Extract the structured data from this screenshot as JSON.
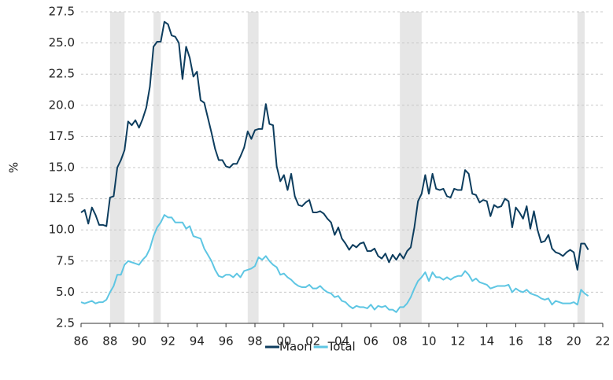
{
  "chart_data": {
    "type": "line",
    "y_label": "%",
    "x": [
      1986,
      1986.25,
      1986.5,
      1986.75,
      1987,
      1987.25,
      1987.5,
      1987.75,
      1988,
      1988.25,
      1988.5,
      1988.75,
      1989,
      1989.25,
      1989.5,
      1989.75,
      1990,
      1990.25,
      1990.5,
      1990.75,
      1991,
      1991.25,
      1991.5,
      1991.75,
      1992,
      1992.25,
      1992.5,
      1992.75,
      1993,
      1993.25,
      1993.5,
      1993.75,
      1994,
      1994.25,
      1994.5,
      1994.75,
      1995,
      1995.25,
      1995.5,
      1995.75,
      1996,
      1996.25,
      1996.5,
      1996.75,
      1997,
      1997.25,
      1997.5,
      1997.75,
      1998,
      1998.25,
      1998.5,
      1998.75,
      1999,
      1999.25,
      1999.5,
      1999.75,
      2000,
      2000.25,
      2000.5,
      2000.75,
      2001,
      2001.25,
      2001.5,
      2001.75,
      2002,
      2002.25,
      2002.5,
      2002.75,
      2003,
      2003.25,
      2003.5,
      2003.75,
      2004,
      2004.25,
      2004.5,
      2004.75,
      2005,
      2005.25,
      2005.5,
      2005.75,
      2006,
      2006.25,
      2006.5,
      2006.75,
      2007,
      2007.25,
      2007.5,
      2007.75,
      2008,
      2008.25,
      2008.5,
      2008.75,
      2009,
      2009.25,
      2009.5,
      2009.75,
      2010,
      2010.25,
      2010.5,
      2010.75,
      2011,
      2011.25,
      2011.5,
      2011.75,
      2012,
      2012.25,
      2012.5,
      2012.75,
      2013,
      2013.25,
      2013.5,
      2013.75,
      2014,
      2014.25,
      2014.5,
      2014.75,
      2015,
      2015.25,
      2015.5,
      2015.75,
      2016,
      2016.25,
      2016.5,
      2016.75,
      2017,
      2017.25,
      2017.5,
      2017.75,
      2018,
      2018.25,
      2018.5,
      2018.75,
      2019,
      2019.25,
      2019.5,
      2019.75,
      2020,
      2020.25,
      2020.5,
      2020.75,
      2021
    ],
    "series": [
      {
        "name": "Maori",
        "color": "#0d3d5e",
        "values": [
          11.4,
          11.6,
          10.5,
          11.8,
          11.2,
          10.4,
          10.4,
          10.3,
          12.6,
          12.7,
          15.0,
          15.6,
          16.4,
          18.7,
          18.4,
          18.8,
          18.2,
          18.9,
          19.8,
          21.5,
          24.7,
          25.1,
          25.1,
          26.7,
          26.5,
          25.6,
          25.5,
          25.0,
          22.1,
          24.7,
          23.8,
          22.3,
          22.7,
          20.4,
          20.2,
          19.0,
          17.8,
          16.5,
          15.6,
          15.6,
          15.1,
          15.0,
          15.3,
          15.3,
          15.9,
          16.6,
          17.9,
          17.3,
          18.0,
          18.1,
          18.1,
          20.1,
          18.5,
          18.4,
          15.1,
          13.9,
          14.4,
          13.2,
          14.5,
          12.7,
          12.0,
          11.9,
          12.2,
          12.4,
          11.4,
          11.4,
          11.5,
          11.3,
          10.9,
          10.6,
          9.6,
          10.2,
          9.3,
          8.9,
          8.4,
          8.8,
          8.6,
          8.9,
          9.0,
          8.3,
          8.3,
          8.5,
          7.9,
          7.7,
          8.1,
          7.4,
          8.0,
          7.6,
          8.1,
          7.7,
          8.3,
          8.6,
          10.2,
          12.3,
          12.9,
          14.4,
          12.9,
          14.5,
          13.3,
          13.2,
          13.3,
          12.7,
          12.6,
          13.3,
          13.2,
          13.2,
          14.8,
          14.5,
          12.9,
          12.8,
          12.2,
          12.4,
          12.3,
          11.1,
          12.0,
          11.8,
          11.9,
          12.5,
          12.3,
          10.2,
          11.8,
          11.4,
          10.9,
          11.9,
          10.1,
          11.5,
          10.0,
          9.0,
          9.1,
          9.6,
          8.5,
          8.2,
          8.1,
          7.9,
          8.2,
          8.4,
          8.2,
          6.8,
          8.9,
          8.9,
          8.4
        ]
      },
      {
        "name": "Total",
        "color": "#5ec6e3",
        "values": [
          4.2,
          4.1,
          4.2,
          4.3,
          4.1,
          4.2,
          4.2,
          4.4,
          5.0,
          5.5,
          6.4,
          6.4,
          7.2,
          7.5,
          7.4,
          7.3,
          7.2,
          7.6,
          7.9,
          8.5,
          9.5,
          10.2,
          10.6,
          11.2,
          11.0,
          11.0,
          10.6,
          10.6,
          10.6,
          10.1,
          10.3,
          9.5,
          9.4,
          9.3,
          8.5,
          8.0,
          7.5,
          6.8,
          6.3,
          6.2,
          6.4,
          6.4,
          6.2,
          6.5,
          6.2,
          6.7,
          6.8,
          6.9,
          7.1,
          7.8,
          7.6,
          7.9,
          7.5,
          7.2,
          7.0,
          6.4,
          6.5,
          6.2,
          6.0,
          5.7,
          5.5,
          5.4,
          5.4,
          5.6,
          5.3,
          5.3,
          5.5,
          5.2,
          5.0,
          4.9,
          4.6,
          4.7,
          4.3,
          4.2,
          3.9,
          3.7,
          3.9,
          3.8,
          3.8,
          3.7,
          4.0,
          3.6,
          3.9,
          3.8,
          3.9,
          3.6,
          3.6,
          3.4,
          3.8,
          3.8,
          4.1,
          4.6,
          5.3,
          5.9,
          6.2,
          6.6,
          5.9,
          6.6,
          6.2,
          6.2,
          6.0,
          6.2,
          6.0,
          6.2,
          6.3,
          6.3,
          6.7,
          6.4,
          5.9,
          6.1,
          5.8,
          5.7,
          5.6,
          5.3,
          5.4,
          5.5,
          5.5,
          5.5,
          5.6,
          5.0,
          5.3,
          5.1,
          5.0,
          5.2,
          4.9,
          4.8,
          4.7,
          4.5,
          4.4,
          4.5,
          4.0,
          4.3,
          4.2,
          4.1,
          4.1,
          4.1,
          4.2,
          4.0,
          5.2,
          4.9,
          4.7
        ]
      }
    ],
    "recessions": [
      [
        1988,
        1989
      ],
      [
        1991,
        1991.5
      ],
      [
        1997.5,
        1998.25
      ],
      [
        2008,
        2009.5
      ],
      [
        2020.25,
        2020.75
      ]
    ],
    "xlim": [
      1986,
      2022
    ],
    "xticks": [
      {
        "value": 1986,
        "label": "86"
      },
      {
        "value": 1988,
        "label": "88"
      },
      {
        "value": 1990,
        "label": "90"
      },
      {
        "value": 1992,
        "label": "92"
      },
      {
        "value": 1994,
        "label": "94"
      },
      {
        "value": 1996,
        "label": "96"
      },
      {
        "value": 1998,
        "label": "98"
      },
      {
        "value": 2000,
        "label": "00"
      },
      {
        "value": 2002,
        "label": "02"
      },
      {
        "value": 2004,
        "label": "04"
      },
      {
        "value": 2006,
        "label": "06"
      },
      {
        "value": 2008,
        "label": "08"
      },
      {
        "value": 2010,
        "label": "10"
      },
      {
        "value": 2012,
        "label": "12"
      },
      {
        "value": 2014,
        "label": "14"
      },
      {
        "value": 2016,
        "label": "16"
      },
      {
        "value": 2018,
        "label": "18"
      },
      {
        "value": 2020,
        "label": "20"
      },
      {
        "value": 2022,
        "label": "22"
      }
    ],
    "ylim": [
      2.5,
      27.5
    ],
    "yticks": [
      2.5,
      {
        "value": 5,
        "label": "5.0"
      },
      7.5,
      {
        "value": 10,
        "label": "10.0"
      },
      12.5,
      {
        "value": 15,
        "label": "15.0"
      },
      17.5,
      {
        "value": 20,
        "label": "20.0"
      },
      22.5,
      {
        "value": 25,
        "label": "25.0"
      },
      27.5
    ],
    "grid": true,
    "legend": "bottom"
  }
}
